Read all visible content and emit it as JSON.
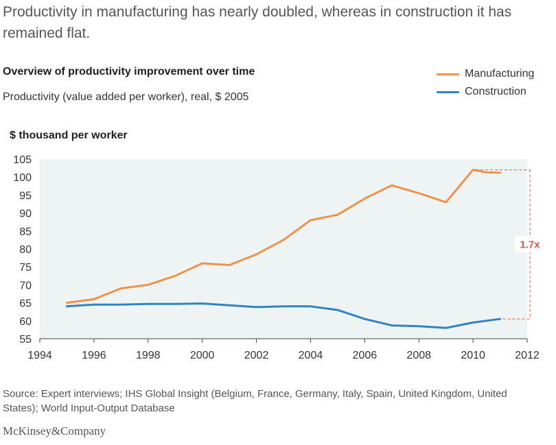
{
  "headline": "Productivity in manufacturing has nearly doubled, whereas in construction it has remained flat.",
  "subtitle": "Overview of productivity improvement over time",
  "units_note": "Productivity (value added per worker), real, $ 2005",
  "source": "Source: Expert interviews; IHS Global Insight (Belgium, France, Germany, Italy, Spain, United Kingdom, United States); World Input-Output Database",
  "logo_text": "McKinsey&Company",
  "colors": {
    "manufacturing": "#f0914a",
    "construction": "#2f83c4",
    "plot_bg": "#eef4f4",
    "annotation": "#e2504a"
  },
  "chart_data": {
    "type": "line",
    "title": "Overview of productivity improvement over time",
    "ylabel": "$ thousand per worker",
    "xlabel": "",
    "xlim": [
      1994,
      2012
    ],
    "ylim": [
      55,
      105
    ],
    "xticks": [
      "1994",
      "1996",
      "1998",
      "2000",
      "2002",
      "2004",
      "2006",
      "2008",
      "2010",
      "2012"
    ],
    "yticks": [
      "55",
      "60",
      "65",
      "70",
      "75",
      "80",
      "85",
      "90",
      "95",
      "100",
      "105"
    ],
    "grid": false,
    "legend_position": "top-right",
    "series": [
      {
        "name": "Manufacturing",
        "x": [
          1995,
          1996,
          1997,
          1998,
          1999,
          2000,
          2001,
          2002,
          2003,
          2004,
          2005,
          2006,
          2007,
          2008,
          2009,
          2010,
          2010.5,
          2011
        ],
        "values": [
          65,
          66,
          69,
          70,
          72.5,
          76,
          75.5,
          78.5,
          82.5,
          88,
          89.5,
          94,
          97.7,
          95.5,
          93,
          102,
          101.3,
          101.2
        ]
      },
      {
        "name": "Construction",
        "x": [
          1995,
          1996,
          1997,
          1998,
          1999,
          2000,
          2001,
          2002,
          2003,
          2004,
          2005,
          2006,
          2007,
          2008,
          2009,
          2010,
          2011
        ],
        "values": [
          64,
          64.5,
          64.5,
          64.7,
          64.7,
          64.8,
          64.3,
          63.8,
          64,
          64,
          63,
          60.5,
          58.7,
          58.5,
          58,
          59.5,
          60.5
        ]
      }
    ],
    "annotations": [
      {
        "text": "1.7x"
      }
    ]
  }
}
